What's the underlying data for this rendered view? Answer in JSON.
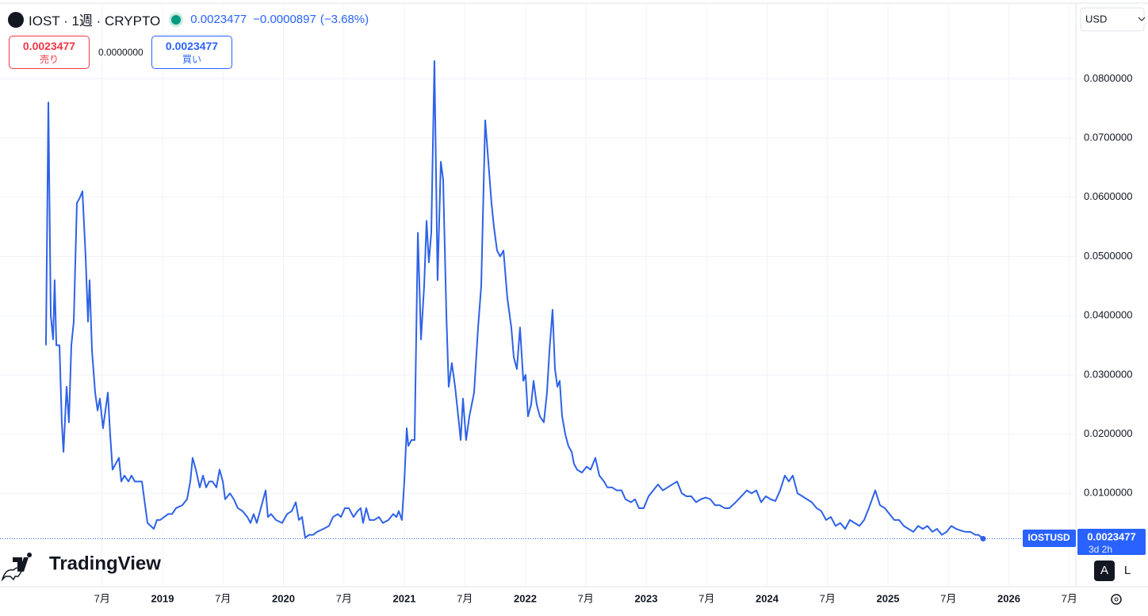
{
  "header": {
    "symbol": "IOST · 1週 · CRYPTO",
    "price": "0.0023477",
    "change": "−0.0000897",
    "change_pct": "(−3.68%)",
    "sell_price": "0.0023477",
    "sell_label": "売り",
    "spread": "0.0000000",
    "buy_price": "0.0023477",
    "buy_label": "買い",
    "currency": "USD",
    "countdown": "3d 2h",
    "logo": "TradingView",
    "buttons": [
      "A",
      "L"
    ],
    "price_label": "0.0023477"
  },
  "chart_data": {
    "type": "line",
    "grid": true,
    "log_scale": false,
    "xlim": [
      2017.656,
      2026.554
    ],
    "xticks": [
      {
        "value": 2018.5,
        "label": "7月"
      },
      2019,
      {
        "value": 2019.5,
        "label": "7月"
      },
      2020,
      {
        "value": 2020.5,
        "label": "7月"
      },
      2021,
      {
        "value": 2021.5,
        "label": "7月"
      },
      2022,
      {
        "value": 2022.5,
        "label": "7月"
      },
      2023,
      {
        "value": 2023.5,
        "label": "7月"
      },
      2024,
      {
        "value": 2024.5,
        "label": "7月"
      },
      2025,
      {
        "value": 2025.5,
        "label": "7月"
      },
      2026,
      {
        "value": 2026.5,
        "label": "7月"
      }
    ],
    "ylim": [
      -0.00576,
      0.09264
    ],
    "yticks": [
      {
        "value": 0.01,
        "label": "0.0100000"
      },
      {
        "value": 0.02,
        "label": "0.0200000"
      },
      {
        "value": 0.03,
        "label": "0.0300000"
      },
      {
        "value": 0.04,
        "label": "0.0400000"
      },
      {
        "value": 0.05,
        "label": "0.0500000"
      },
      {
        "value": 0.06,
        "label": "0.0600000"
      },
      {
        "value": 0.07,
        "label": "0.0700000"
      },
      {
        "value": 0.08,
        "label": "0.0800000"
      }
    ],
    "x": [
      2018.036,
      2018.056,
      2018.076,
      2018.095,
      2018.108,
      2018.122,
      2018.148,
      2018.167,
      2018.181,
      2018.207,
      2018.226,
      2018.246,
      2018.266,
      2018.292,
      2018.318,
      2018.338,
      2018.364,
      2018.384,
      2018.397,
      2018.417,
      2018.443,
      2018.463,
      2018.482,
      2018.508,
      2018.528,
      2018.548,
      2018.567,
      2018.587,
      2018.613,
      2018.64,
      2018.659,
      2018.685,
      2018.718,
      2018.744,
      2018.771,
      2018.797,
      2018.83,
      2018.856,
      2018.876,
      2018.902,
      2018.928,
      2018.954,
      2018.981,
      2019.013,
      2019.046,
      2019.079,
      2019.112,
      2019.164,
      2019.203,
      2019.23,
      2019.249,
      2019.276,
      2019.308,
      2019.335,
      2019.361,
      2019.387,
      2019.413,
      2019.446,
      2019.472,
      2019.499,
      2019.518,
      2019.558,
      2019.59,
      2019.623,
      2019.662,
      2019.702,
      2019.728,
      2019.754,
      2019.78,
      2019.82,
      2019.853,
      2019.872,
      2019.898,
      2019.938,
      2019.99,
      2020.03,
      2020.069,
      2020.102,
      2020.128,
      2020.154,
      2020.18,
      2020.213,
      2020.246,
      2020.279,
      2020.331,
      2020.377,
      2020.41,
      2020.449,
      2020.476,
      2020.508,
      2020.541,
      2020.58,
      2020.613,
      2020.639,
      2020.659,
      2020.685,
      2020.712,
      2020.751,
      2020.79,
      2020.823,
      2020.869,
      2020.908,
      2020.935,
      2020.954,
      2020.98,
      2021.0,
      2021.02,
      2021.033,
      2021.059,
      2021.085,
      2021.112,
      2021.138,
      2021.164,
      2021.184,
      2021.203,
      2021.223,
      2021.249,
      2021.275,
      2021.302,
      2021.321,
      2021.348,
      2021.367,
      2021.393,
      2021.42,
      2021.446,
      2021.466,
      2021.485,
      2021.511,
      2021.538,
      2021.577,
      2021.61,
      2021.636,
      2021.669,
      2021.695,
      2021.721,
      2021.741,
      2021.767,
      2021.793,
      2021.82,
      2021.852,
      2021.885,
      2021.905,
      2021.931,
      2021.957,
      2021.984,
      2022.003,
      2022.023,
      2022.049,
      2022.069,
      2022.095,
      2022.121,
      2022.154,
      2022.18,
      2022.2,
      2022.226,
      2022.246,
      2022.266,
      2022.285,
      2022.305,
      2022.331,
      2022.357,
      2022.384,
      2022.403,
      2022.429,
      2022.469,
      2022.508,
      2022.541,
      2022.58,
      2022.613,
      2022.652,
      2022.679,
      2022.718,
      2022.757,
      2022.797,
      2022.829,
      2022.875,
      2022.908,
      2022.941,
      2022.98,
      2023.02,
      2023.059,
      2023.098,
      2023.138,
      2023.177,
      2023.216,
      2023.256,
      2023.295,
      2023.334,
      2023.374,
      2023.413,
      2023.452,
      2023.492,
      2023.531,
      2023.57,
      2023.609,
      2023.649,
      2023.688,
      2023.741,
      2023.787,
      2023.833,
      2023.872,
      2023.911,
      2023.951,
      2023.99,
      2024.029,
      2024.069,
      2024.108,
      2024.147,
      2024.18,
      2024.213,
      2024.252,
      2024.292,
      2024.331,
      2024.37,
      2024.41,
      2024.449,
      2024.488,
      2024.528,
      2024.567,
      2024.606,
      2024.646,
      2024.685,
      2024.724,
      2024.764,
      2024.803,
      2024.842,
      2024.895,
      2024.934,
      2024.974,
      2025.013,
      2025.052,
      2025.092,
      2025.131,
      2025.17,
      2025.21,
      2025.249,
      2025.288,
      2025.327,
      2025.367,
      2025.406,
      2025.446,
      2025.485,
      2025.524,
      2025.564,
      2025.603,
      2025.642,
      2025.682,
      2025.721,
      2025.747,
      2025.787
    ],
    "series": [
      {
        "name": "IOSTUSD",
        "color": "#2e62e6",
        "values": [
          0.035,
          0.076,
          0.04,
          0.036,
          0.046,
          0.035,
          0.035,
          0.022,
          0.017,
          0.028,
          0.022,
          0.035,
          0.039,
          0.059,
          0.06,
          0.061,
          0.05,
          0.039,
          0.046,
          0.034,
          0.027,
          0.024,
          0.026,
          0.021,
          0.024,
          0.027,
          0.02,
          0.014,
          0.015,
          0.016,
          0.012,
          0.013,
          0.012,
          0.013,
          0.012,
          0.012,
          0.012,
          0.008,
          0.005,
          0.0045,
          0.004,
          0.0055,
          0.0055,
          0.006,
          0.0065,
          0.0065,
          0.0075,
          0.008,
          0.009,
          0.012,
          0.016,
          0.014,
          0.011,
          0.013,
          0.011,
          0.012,
          0.012,
          0.011,
          0.014,
          0.012,
          0.009,
          0.01,
          0.009,
          0.0075,
          0.007,
          0.006,
          0.005,
          0.0065,
          0.005,
          0.008,
          0.0105,
          0.006,
          0.0065,
          0.0055,
          0.005,
          0.0065,
          0.007,
          0.0085,
          0.0055,
          0.006,
          0.0025,
          0.003,
          0.003,
          0.0035,
          0.004,
          0.0045,
          0.006,
          0.0065,
          0.006,
          0.0075,
          0.0075,
          0.006,
          0.007,
          0.0075,
          0.005,
          0.0075,
          0.0055,
          0.0055,
          0.006,
          0.005,
          0.0055,
          0.0065,
          0.006,
          0.007,
          0.0055,
          0.012,
          0.021,
          0.018,
          0.019,
          0.019,
          0.054,
          0.036,
          0.045,
          0.056,
          0.049,
          0.054,
          0.083,
          0.046,
          0.066,
          0.063,
          0.04,
          0.028,
          0.032,
          0.028,
          0.023,
          0.019,
          0.026,
          0.019,
          0.023,
          0.027,
          0.038,
          0.045,
          0.073,
          0.066,
          0.059,
          0.055,
          0.051,
          0.05,
          0.051,
          0.043,
          0.038,
          0.033,
          0.031,
          0.038,
          0.029,
          0.03,
          0.023,
          0.025,
          0.029,
          0.025,
          0.023,
          0.022,
          0.027,
          0.034,
          0.041,
          0.031,
          0.028,
          0.029,
          0.023,
          0.02,
          0.018,
          0.017,
          0.015,
          0.014,
          0.0135,
          0.0145,
          0.014,
          0.016,
          0.013,
          0.012,
          0.011,
          0.011,
          0.0105,
          0.0105,
          0.009,
          0.0085,
          0.009,
          0.0075,
          0.0075,
          0.0095,
          0.0105,
          0.0115,
          0.0105,
          0.011,
          0.0115,
          0.012,
          0.01,
          0.0095,
          0.0095,
          0.0085,
          0.009,
          0.0093,
          0.009,
          0.008,
          0.008,
          0.0075,
          0.0075,
          0.0085,
          0.0095,
          0.0105,
          0.01,
          0.0105,
          0.0085,
          0.0095,
          0.009,
          0.0087,
          0.0105,
          0.013,
          0.012,
          0.013,
          0.01,
          0.0095,
          0.009,
          0.0085,
          0.0075,
          0.007,
          0.0055,
          0.006,
          0.0045,
          0.005,
          0.004,
          0.0055,
          0.005,
          0.0045,
          0.0055,
          0.0075,
          0.0105,
          0.008,
          0.0075,
          0.0065,
          0.0055,
          0.0055,
          0.0045,
          0.004,
          0.0035,
          0.0045,
          0.004,
          0.0045,
          0.0035,
          0.004,
          0.003,
          0.0035,
          0.0045,
          0.004,
          0.0037,
          0.0035,
          0.0035,
          0.003,
          0.003,
          0.0023477
        ]
      }
    ]
  }
}
